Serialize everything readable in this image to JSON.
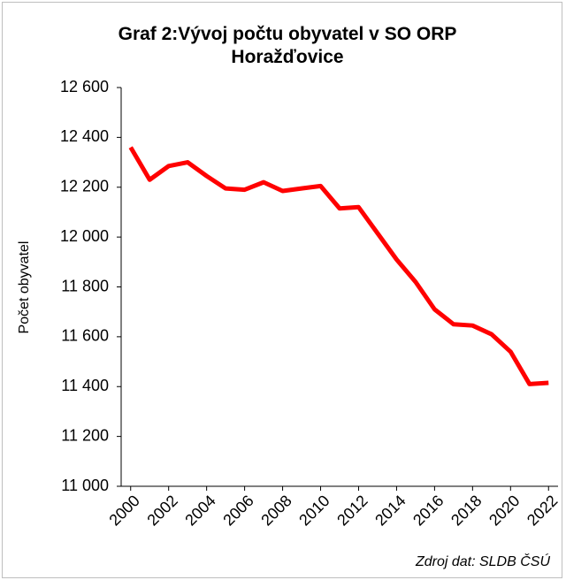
{
  "chart_data": {
    "type": "line",
    "title": "Graf 2:Vývoj počtu obyvatel v SO ORP Horažďovice",
    "y_label": "Počet obyvatel",
    "source": "Zdroj dat: SLDB ČSÚ",
    "x": [
      2000,
      2001,
      2002,
      2003,
      2004,
      2005,
      2006,
      2007,
      2008,
      2009,
      2010,
      2011,
      2012,
      2013,
      2014,
      2015,
      2016,
      2017,
      2018,
      2019,
      2020,
      2021,
      2022
    ],
    "series": [
      {
        "name": "Počet obyvatel",
        "color": "#ff0000",
        "values": [
          12360,
          12230,
          12285,
          12300,
          12245,
          12195,
          12190,
          12220,
          12185,
          12195,
          12205,
          12115,
          12120,
          12015,
          11910,
          11820,
          11710,
          11650,
          11645,
          11610,
          11540,
          11410,
          11415
        ]
      }
    ],
    "xlim": [
      1999.5,
      2022.5
    ],
    "xticks": [
      2000,
      2002,
      2004,
      2006,
      2008,
      2010,
      2012,
      2014,
      2016,
      2018,
      2020,
      2022
    ],
    "ylim": [
      11000,
      12600
    ],
    "yticks": [
      {
        "value": 11000,
        "label": "11 000"
      },
      {
        "value": 11200,
        "label": "11 200"
      },
      {
        "value": 11400,
        "label": "11 400"
      },
      {
        "value": 11600,
        "label": "11 600"
      },
      {
        "value": 11800,
        "label": "11 800"
      },
      {
        "value": 12000,
        "label": "12 000"
      },
      {
        "value": 12200,
        "label": "12 200"
      },
      {
        "value": 12400,
        "label": "12 400"
      },
      {
        "value": 12600,
        "label": "12 600"
      }
    ],
    "grid": false
  }
}
